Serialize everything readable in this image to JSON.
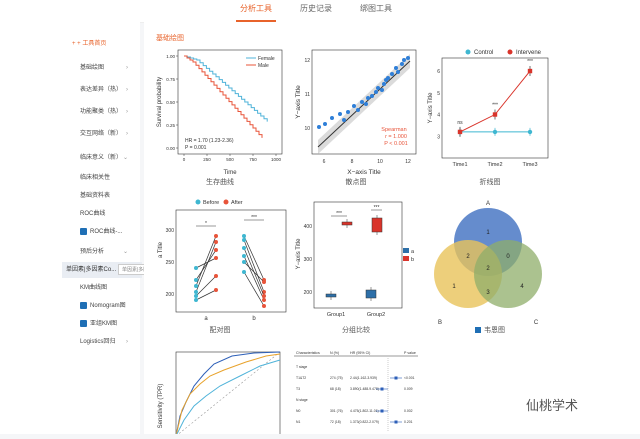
{
  "tabs": [
    {
      "label": "分析工具",
      "active": true
    },
    {
      "label": "历史记录",
      "active": false
    },
    {
      "label": "绑图工具",
      "active": false
    }
  ],
  "sidebar": {
    "items": [
      {
        "label": "工具首页",
        "type": "home"
      },
      {
        "label": "基础绘图",
        "type": "group"
      },
      {
        "label": "表达差异（热）",
        "type": "group"
      },
      {
        "label": "功能聚类（热）",
        "type": "group"
      },
      {
        "label": "交互网络（新）",
        "type": "group"
      },
      {
        "label": "临床意义（新）",
        "type": "group-open"
      },
      {
        "label": "临床相关性",
        "type": "sub"
      },
      {
        "label": "基础资料表",
        "type": "sub"
      },
      {
        "label": "ROC曲线",
        "type": "sub"
      },
      {
        "label": "ROC曲线-...",
        "type": "sub-icon"
      },
      {
        "label": "预后分析",
        "type": "group-open"
      },
      {
        "label": "单因素|多因素Co...",
        "type": "selected"
      },
      {
        "label": "KM曲线图",
        "type": "sub"
      },
      {
        "label": "Nomogram图",
        "type": "sub-icon"
      },
      {
        "label": "亚组KM图",
        "type": "sub-icon"
      },
      {
        "label": "Logistics回归",
        "type": "group"
      }
    ],
    "tooltip": "单因素|多因素Cox回归分析"
  },
  "section": {
    "title": "基础绘图"
  },
  "cards": {
    "survival": {
      "caption": "生存曲线",
      "ylabel": "Survival probability",
      "xlabel": "Time",
      "legend": [
        "Female",
        "Male"
      ],
      "hr": "HR = 1.70 (1.23-2.36)",
      "p": "P = 0.001",
      "xticks": [
        "0",
        "250",
        "500",
        "750",
        "1000"
      ],
      "yticks": [
        "1.00",
        "0.75",
        "0.50",
        "0.25",
        "0.00"
      ],
      "colors": {
        "female": "#4fb3d9",
        "male": "#e8543a"
      }
    },
    "scatter": {
      "caption": "散点图",
      "ylabel": "Y−axis Title",
      "xlabel": "X−axis Title",
      "spearman": "Spearman",
      "r": "r = 1.000",
      "p": "P < 0.001",
      "xticks": [
        "6",
        "8",
        "10",
        "12"
      ],
      "yticks": [
        "10",
        "11",
        "12"
      ]
    },
    "line": {
      "caption": "折线图",
      "ylabel": "Y−axis Title",
      "legend": [
        "Control",
        "Intervene"
      ],
      "categories": [
        "Time1",
        "Time2",
        "Time3"
      ],
      "control": [
        3.2,
        3.2,
        3.2
      ],
      "intervene": [
        3.2,
        4.0,
        6.0
      ],
      "ylim": [
        2,
        6.6
      ],
      "yticks": [
        "3",
        "4",
        "5",
        "6"
      ],
      "sig": [
        "ns",
        "***",
        "***"
      ]
    },
    "paired": {
      "caption": "配对图",
      "legend": [
        "Before",
        "After"
      ],
      "ylabel": "a Title",
      "xticks": [
        "a",
        "b"
      ],
      "yticks": [
        "300",
        "250",
        "200"
      ],
      "sig": [
        "*",
        "***"
      ]
    },
    "boxplot": {
      "caption": "分组比较",
      "ylabel": "Y−axis Title",
      "xticks": [
        "Group1",
        "Group2"
      ],
      "yticks": [
        "400",
        "300",
        "200"
      ],
      "legend": [
        "a",
        "b"
      ],
      "sig": [
        "***",
        "***"
      ]
    },
    "venn": {
      "caption": "韦恩图",
      "sets": [
        "A",
        "B",
        "C"
      ],
      "regions": [
        "1",
        "2",
        "2",
        "0",
        "1",
        "3",
        "4"
      ]
    },
    "roc": {
      "ylabel": "Sensitivity (TPR)"
    },
    "forest": {
      "headers": [
        "Characteristics",
        "N (%)",
        "HR (95% CI)",
        "",
        "P value"
      ],
      "rows": [
        [
          "T stage",
          "",
          "",
          "",
          ""
        ],
        [
          "T1&T2",
          "274 (75)",
          "2.44(1.162-3.939)",
          "",
          "<0.001"
        ],
        [
          "T3",
          "68 (18)",
          "3.890(1.488-9.478)",
          "",
          "0.009"
        ],
        [
          "N stage",
          "",
          "",
          "",
          ""
        ],
        [
          "N0",
          "301 (76)",
          "4.475(1.802-11.01)",
          "",
          "0.002"
        ],
        [
          "N1",
          "72 (18)",
          "1.373(0.822-2.079)",
          "",
          "0.201"
        ]
      ]
    }
  },
  "watermark": "仙桃学术"
}
